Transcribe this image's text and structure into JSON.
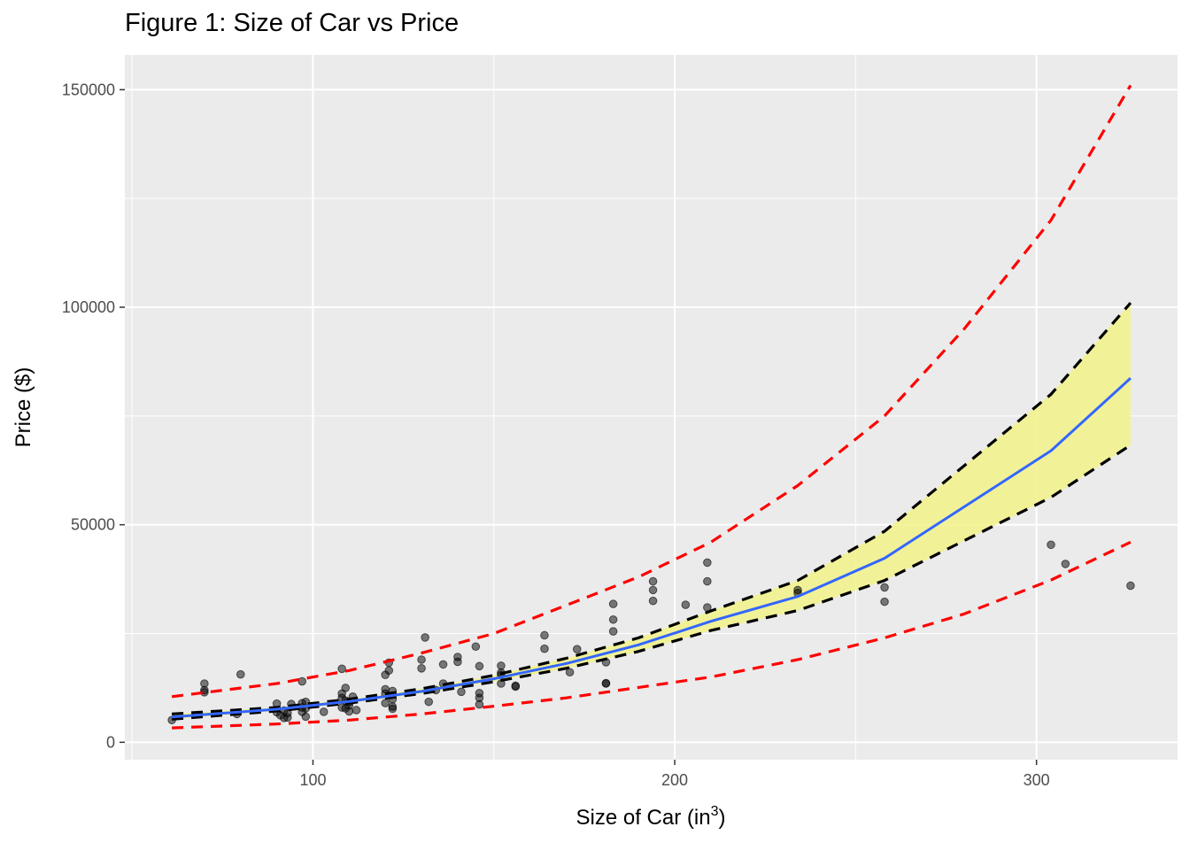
{
  "chart_data": {
    "type": "scatter",
    "title": "Figure 1: Size of Car vs Price",
    "xlabel": "Size of Car (in",
    "xlabel_sup": "3",
    "xlabel_close": ")",
    "ylabel": "Price ($)",
    "xlim": [
      48,
      339
    ],
    "ylim": [
      -4000,
      158000
    ],
    "x_ticks": [
      100,
      200,
      300
    ],
    "x_tick_labels": [
      "100",
      "200",
      "300"
    ],
    "x_minor_ticks": [
      50,
      150,
      250
    ],
    "y_ticks": [
      0,
      50000,
      100000,
      150000
    ],
    "y_tick_labels": [
      "0",
      "50000",
      "100000",
      "150000"
    ],
    "y_minor_ticks": [
      25000,
      75000,
      125000
    ],
    "grid": true,
    "colors": {
      "panel": "#ebebeb",
      "grid": "#ffffff",
      "points": "#000000",
      "fit": "#3366ff",
      "confidence_band": "#f2f28a",
      "confidence_limits": "#000000",
      "prediction_limits": "#ff0000"
    },
    "points": [
      [
        61,
        5100
      ],
      [
        70,
        13500
      ],
      [
        70,
        11500
      ],
      [
        70,
        12000
      ],
      [
        79,
        6500
      ],
      [
        80,
        15600
      ],
      [
        90,
        8900
      ],
      [
        90,
        6900
      ],
      [
        91,
        6200
      ],
      [
        92,
        5600
      ],
      [
        92,
        7300
      ],
      [
        93,
        5700
      ],
      [
        93,
        6700
      ],
      [
        94,
        8800
      ],
      [
        97,
        7000
      ],
      [
        97,
        14000
      ],
      [
        97,
        9000
      ],
      [
        97,
        8000
      ],
      [
        98,
        5900
      ],
      [
        98,
        9300
      ],
      [
        98,
        7800
      ],
      [
        103,
        7000
      ],
      [
        108,
        16900
      ],
      [
        108,
        11200
      ],
      [
        108,
        10200
      ],
      [
        108,
        8000
      ],
      [
        109,
        7800
      ],
      [
        109,
        9600
      ],
      [
        109,
        12500
      ],
      [
        110,
        9200
      ],
      [
        110,
        7100
      ],
      [
        110,
        8500
      ],
      [
        111,
        10500
      ],
      [
        112,
        7400
      ],
      [
        120,
        11200
      ],
      [
        120,
        9000
      ],
      [
        120,
        12200
      ],
      [
        120,
        15500
      ],
      [
        121,
        16500
      ],
      [
        121,
        18300
      ],
      [
        122,
        8200
      ],
      [
        122,
        9900
      ],
      [
        122,
        11800
      ],
      [
        122,
        7700
      ],
      [
        130,
        19000
      ],
      [
        130,
        17000
      ],
      [
        131,
        24100
      ],
      [
        132,
        9300
      ],
      [
        134,
        12000
      ],
      [
        136,
        17900
      ],
      [
        136,
        13500
      ],
      [
        140,
        18500
      ],
      [
        140,
        19600
      ],
      [
        141,
        11600
      ],
      [
        145,
        22000
      ],
      [
        146,
        10200
      ],
      [
        146,
        8700
      ],
      [
        146,
        11300
      ],
      [
        146,
        17500
      ],
      [
        152,
        16000
      ],
      [
        152,
        13500
      ],
      [
        152,
        15500
      ],
      [
        152,
        17600
      ],
      [
        156,
        13000
      ],
      [
        156,
        12800
      ],
      [
        164,
        21500
      ],
      [
        164,
        24600
      ],
      [
        171,
        16100
      ],
      [
        173,
        21400
      ],
      [
        181,
        13500
      ],
      [
        181,
        18400
      ],
      [
        181,
        13600
      ],
      [
        183,
        31800
      ],
      [
        183,
        28200
      ],
      [
        183,
        25500
      ],
      [
        194,
        32500
      ],
      [
        194,
        35000
      ],
      [
        194,
        37000
      ],
      [
        203,
        31600
      ],
      [
        209,
        41300
      ],
      [
        209,
        37000
      ],
      [
        209,
        31000
      ],
      [
        234,
        35000
      ],
      [
        234,
        34300
      ],
      [
        258,
        32300
      ],
      [
        258,
        35600
      ],
      [
        304,
        45400
      ],
      [
        308,
        41000
      ],
      [
        326,
        36000
      ]
    ],
    "fit_line": [
      [
        61,
        5800
      ],
      [
        90,
        7600
      ],
      [
        110,
        9400
      ],
      [
        130,
        11700
      ],
      [
        150,
        14600
      ],
      [
        170,
        18100
      ],
      [
        190,
        22400
      ],
      [
        210,
        27800
      ],
      [
        234,
        33500
      ],
      [
        258,
        42300
      ],
      [
        304,
        67000
      ],
      [
        326,
        83700
      ]
    ],
    "confidence_upper": [
      [
        61,
        6500
      ],
      [
        90,
        8000
      ],
      [
        110,
        9900
      ],
      [
        130,
        12300
      ],
      [
        150,
        15400
      ],
      [
        170,
        19300
      ],
      [
        190,
        24000
      ],
      [
        210,
        30200
      ],
      [
        234,
        37200
      ],
      [
        258,
        48500
      ],
      [
        304,
        80000
      ],
      [
        326,
        101000
      ]
    ],
    "confidence_lower": [
      [
        61,
        5300
      ],
      [
        90,
        7200
      ],
      [
        110,
        9000
      ],
      [
        130,
        11200
      ],
      [
        150,
        13900
      ],
      [
        170,
        17000
      ],
      [
        190,
        20900
      ],
      [
        210,
        25700
      ],
      [
        234,
        30300
      ],
      [
        258,
        37200
      ],
      [
        304,
        56300
      ],
      [
        326,
        68300
      ]
    ],
    "prediction_upper": [
      [
        61,
        10500
      ],
      [
        90,
        13500
      ],
      [
        110,
        16500
      ],
      [
        130,
        20500
      ],
      [
        150,
        25000
      ],
      [
        170,
        31500
      ],
      [
        190,
        38000
      ],
      [
        210,
        46000
      ],
      [
        234,
        59000
      ],
      [
        258,
        75000
      ],
      [
        280,
        95000
      ],
      [
        304,
        120000
      ],
      [
        326,
        151000
      ]
    ],
    "prediction_lower": [
      [
        61,
        3300
      ],
      [
        90,
        4200
      ],
      [
        110,
        5100
      ],
      [
        130,
        6500
      ],
      [
        150,
        8300
      ],
      [
        170,
        10200
      ],
      [
        190,
        12600
      ],
      [
        210,
        15000
      ],
      [
        234,
        19000
      ],
      [
        258,
        24000
      ],
      [
        280,
        29500
      ],
      [
        304,
        37300
      ],
      [
        326,
        46000
      ]
    ]
  }
}
